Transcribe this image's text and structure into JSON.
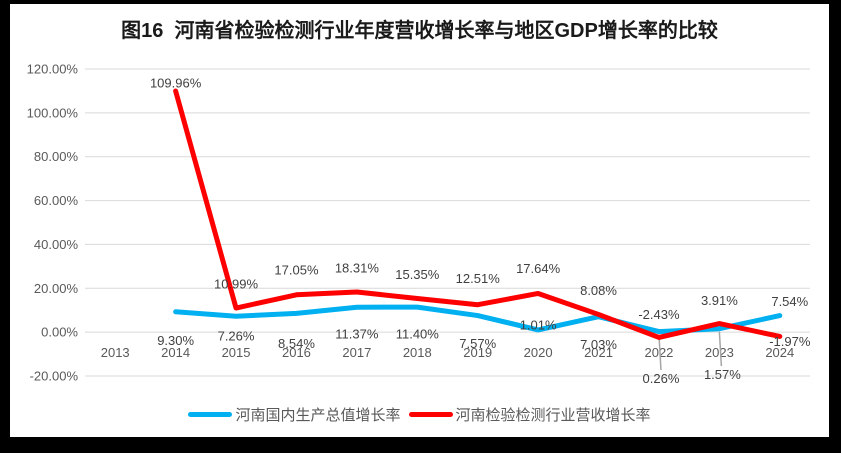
{
  "title": "图16  河南省检验检测行业年度营收增长率与地区GDP增长率的比较",
  "colors": {
    "gdp": "#00B0F0",
    "industry": "#FF0000",
    "grid": "#D9D9D9",
    "axis_text": "#595959",
    "label_text": "#404040",
    "leader": "#A6A6A6",
    "background": "#000000",
    "card": "#FFFFFF"
  },
  "chart_data": {
    "type": "line",
    "title": "图16  河南省检验检测行业年度营收增长率与地区GDP增长率的比较",
    "categories": [
      2013,
      2014,
      2015,
      2016,
      2017,
      2018,
      2019,
      2020,
      2021,
      2022,
      2023,
      2024
    ],
    "series": [
      {
        "name": "河南国内生产总值增长率",
        "color_key": "gdp",
        "values": [
          null,
          9.3,
          7.26,
          8.54,
          11.37,
          11.4,
          7.57,
          1.01,
          7.03,
          0.26,
          1.57,
          7.54
        ]
      },
      {
        "name": "河南检验检测行业营收增长率",
        "color_key": "industry",
        "values": [
          null,
          109.96,
          10.99,
          17.05,
          18.31,
          15.35,
          12.51,
          17.64,
          8.08,
          -2.43,
          3.91,
          -1.97
        ]
      }
    ],
    "y_ticks": [
      120,
      100,
      80,
      60,
      40,
      20,
      0,
      -20
    ],
    "y_tick_format": "percent_2dp",
    "ylim": [
      -20,
      120
    ],
    "xlabel": "",
    "ylabel": "",
    "grid": true,
    "legend_position": "bottom",
    "data_labels": true
  }
}
